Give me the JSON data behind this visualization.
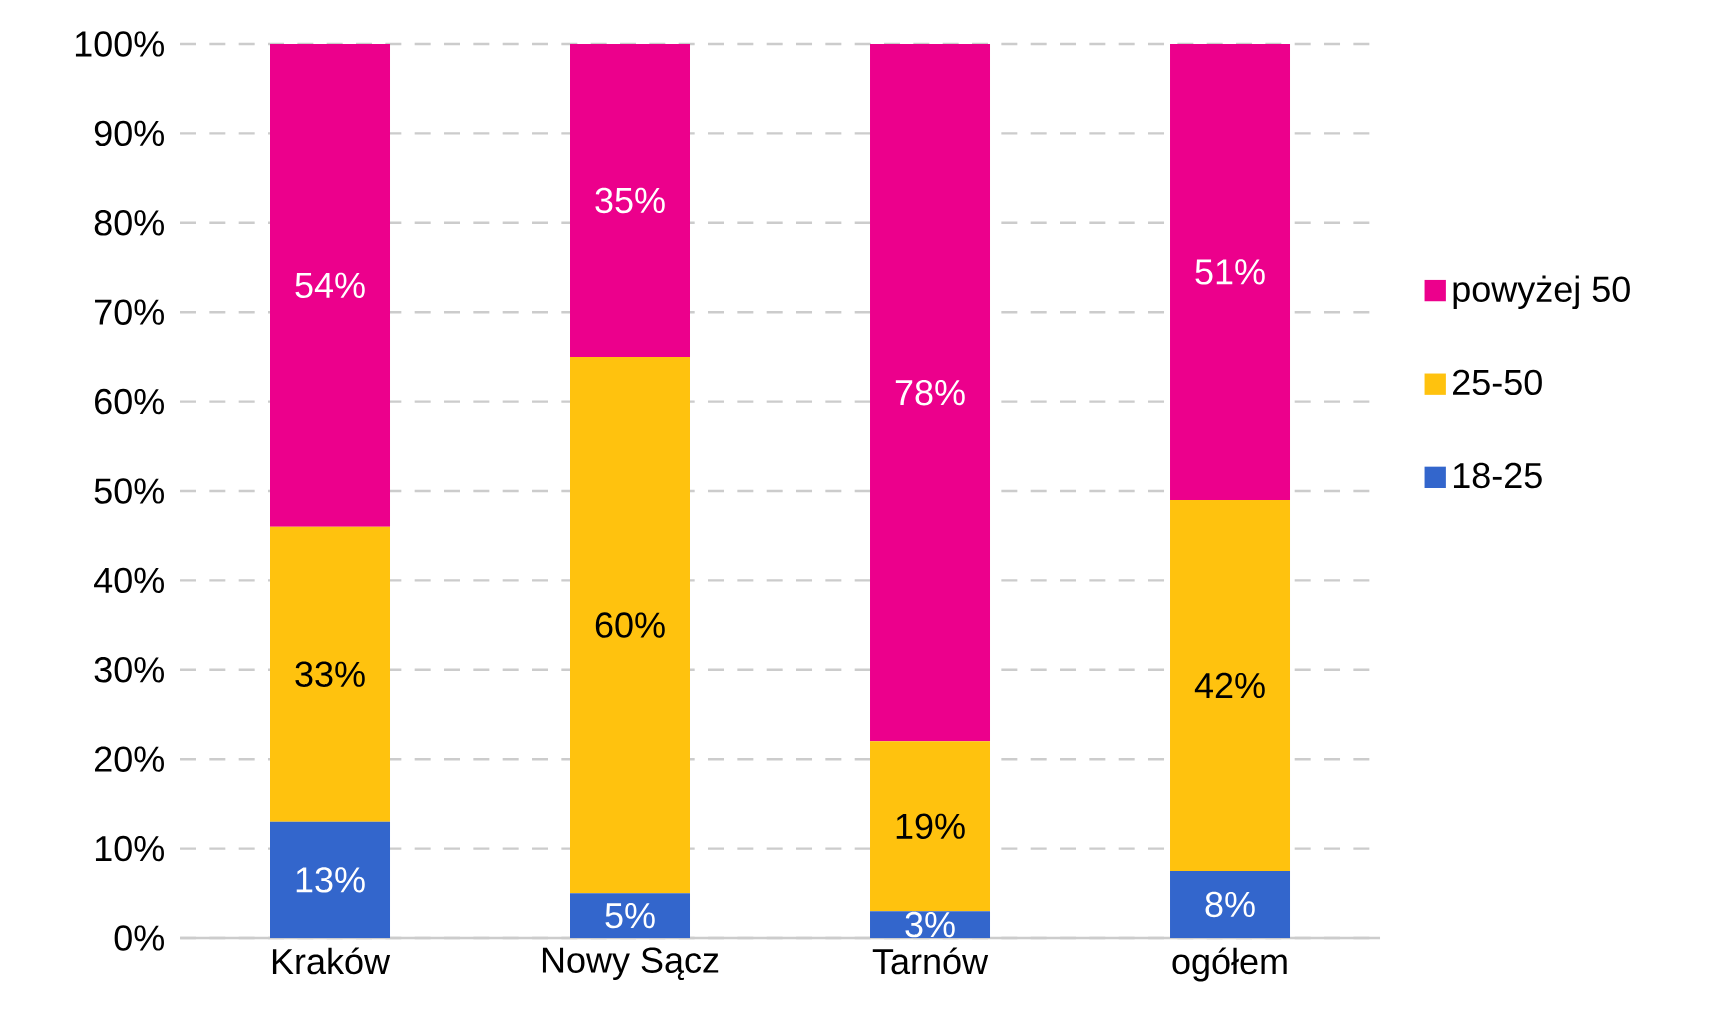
{
  "chart_data": {
    "type": "bar",
    "stacked": true,
    "categories": [
      "Kraków",
      "Nowy Sącz",
      "Tarnów",
      "ogółem"
    ],
    "series": [
      {
        "name": "18-25",
        "color": "#3366cc",
        "values": [
          13,
          5,
          3,
          7.5
        ],
        "value_labels": [
          "13%",
          "5%",
          "3%",
          "8%"
        ]
      },
      {
        "name": "25-50",
        "color": "#ffc20e",
        "values": [
          33,
          60,
          19,
          41.5
        ],
        "value_labels": [
          "33%",
          "60%",
          "19%",
          "42%"
        ]
      },
      {
        "name": "powyżej 50",
        "color": "#ec008c",
        "values": [
          54,
          35,
          78,
          51
        ],
        "value_labels": [
          "54%",
          "35%",
          "78%",
          "51%"
        ]
      }
    ],
    "ylim": [
      0,
      100
    ],
    "yticks": [
      {
        "value": 0,
        "label": "0%"
      },
      {
        "value": 10,
        "label": "10%"
      },
      {
        "value": 20,
        "label": "20%"
      },
      {
        "value": 30,
        "label": "30%"
      },
      {
        "value": 40,
        "label": "40%"
      },
      {
        "value": 50,
        "label": "50%"
      },
      {
        "value": 60,
        "label": "60%"
      },
      {
        "value": 70,
        "label": "70%"
      },
      {
        "value": 80,
        "label": "80%"
      },
      {
        "value": 90,
        "label": "90%"
      },
      {
        "value": 100,
        "label": "100%"
      }
    ],
    "grid": "y",
    "legend": "right"
  }
}
